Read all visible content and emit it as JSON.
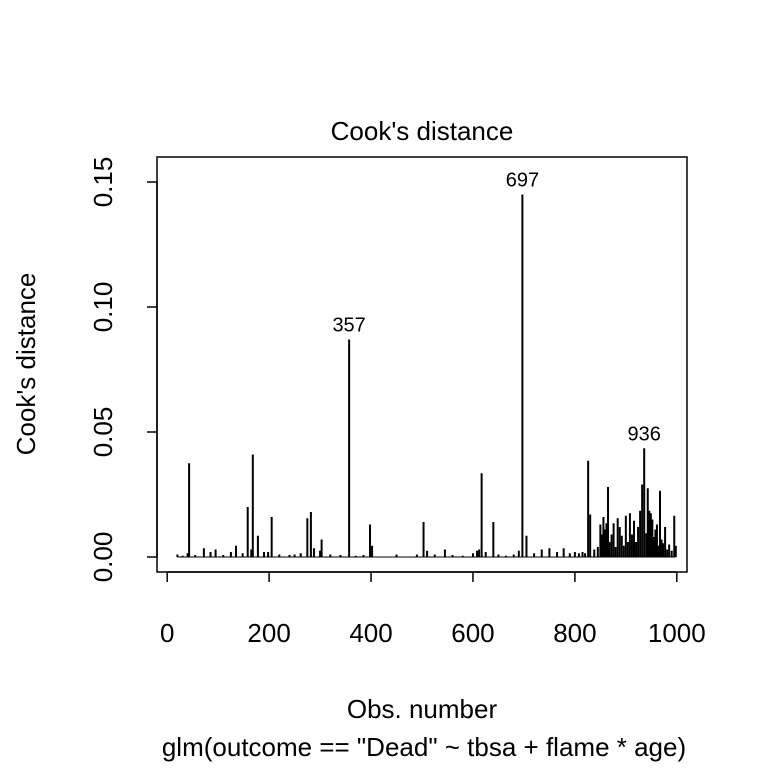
{
  "chart_data": {
    "type": "bar",
    "title": "Cook's distance",
    "xlabel": "Obs. number",
    "subtitle": "glm(outcome == \"Dead\" ~ tbsa + flame * age)",
    "ylabel": "Cook's distance",
    "xlim": [
      -20,
      1020
    ],
    "ylim": [
      -0.006,
      0.16
    ],
    "x_ticks": [
      0,
      200,
      400,
      600,
      800,
      1000
    ],
    "y_ticks": [
      0.0,
      0.05,
      0.1,
      0.15
    ],
    "x_tick_labels": [
      "0",
      "200",
      "400",
      "600",
      "800",
      "1000"
    ],
    "y_tick_labels": [
      "0.00",
      "0.05",
      "0.10",
      "0.15"
    ],
    "grid": false,
    "legend": "none",
    "annotations": [
      {
        "label": "357",
        "x": 357,
        "y": 0.087
      },
      {
        "label": "697",
        "x": 697,
        "y": 0.145
      },
      {
        "label": "936",
        "x": 936,
        "y": 0.0435
      }
    ],
    "points": [
      {
        "x": 20,
        "y": 0.001
      },
      {
        "x": 30,
        "y": 0.0005
      },
      {
        "x": 40,
        "y": 0.0015
      },
      {
        "x": 43,
        "y": 0.0375
      },
      {
        "x": 55,
        "y": 0.0008
      },
      {
        "x": 72,
        "y": 0.0035
      },
      {
        "x": 85,
        "y": 0.002
      },
      {
        "x": 95,
        "y": 0.003
      },
      {
        "x": 110,
        "y": 0.0008
      },
      {
        "x": 125,
        "y": 0.002
      },
      {
        "x": 135,
        "y": 0.0045
      },
      {
        "x": 148,
        "y": 0.0015
      },
      {
        "x": 158,
        "y": 0.02
      },
      {
        "x": 165,
        "y": 0.003
      },
      {
        "x": 168,
        "y": 0.041
      },
      {
        "x": 178,
        "y": 0.0085
      },
      {
        "x": 190,
        "y": 0.002
      },
      {
        "x": 198,
        "y": 0.002
      },
      {
        "x": 205,
        "y": 0.016
      },
      {
        "x": 220,
        "y": 0.001
      },
      {
        "x": 240,
        "y": 0.0008
      },
      {
        "x": 250,
        "y": 0.001
      },
      {
        "x": 262,
        "y": 0.0015
      },
      {
        "x": 275,
        "y": 0.0155
      },
      {
        "x": 282,
        "y": 0.018
      },
      {
        "x": 288,
        "y": 0.0035
      },
      {
        "x": 300,
        "y": 0.0025
      },
      {
        "x": 303,
        "y": 0.007
      },
      {
        "x": 320,
        "y": 0.001
      },
      {
        "x": 340,
        "y": 0.0008
      },
      {
        "x": 357,
        "y": 0.087
      },
      {
        "x": 370,
        "y": 0.0005
      },
      {
        "x": 385,
        "y": 0.0008
      },
      {
        "x": 398,
        "y": 0.013
      },
      {
        "x": 402,
        "y": 0.0045
      },
      {
        "x": 450,
        "y": 0.001
      },
      {
        "x": 490,
        "y": 0.001
      },
      {
        "x": 503,
        "y": 0.014
      },
      {
        "x": 510,
        "y": 0.0025
      },
      {
        "x": 525,
        "y": 0.001
      },
      {
        "x": 545,
        "y": 0.003
      },
      {
        "x": 560,
        "y": 0.0008
      },
      {
        "x": 580,
        "y": 0.0005
      },
      {
        "x": 600,
        "y": 0.0015
      },
      {
        "x": 608,
        "y": 0.0025
      },
      {
        "x": 612,
        "y": 0.003
      },
      {
        "x": 617,
        "y": 0.0335
      },
      {
        "x": 625,
        "y": 0.002
      },
      {
        "x": 640,
        "y": 0.014
      },
      {
        "x": 650,
        "y": 0.001
      },
      {
        "x": 665,
        "y": 0.0005
      },
      {
        "x": 680,
        "y": 0.001
      },
      {
        "x": 690,
        "y": 0.0025
      },
      {
        "x": 697,
        "y": 0.145
      },
      {
        "x": 705,
        "y": 0.0085
      },
      {
        "x": 720,
        "y": 0.0015
      },
      {
        "x": 735,
        "y": 0.003
      },
      {
        "x": 750,
        "y": 0.0035
      },
      {
        "x": 765,
        "y": 0.002
      },
      {
        "x": 778,
        "y": 0.0035
      },
      {
        "x": 790,
        "y": 0.0015
      },
      {
        "x": 800,
        "y": 0.002
      },
      {
        "x": 808,
        "y": 0.0015
      },
      {
        "x": 815,
        "y": 0.002
      },
      {
        "x": 820,
        "y": 0.0015
      },
      {
        "x": 826,
        "y": 0.0385
      },
      {
        "x": 830,
        "y": 0.017
      },
      {
        "x": 838,
        "y": 0.003
      },
      {
        "x": 845,
        "y": 0.004
      },
      {
        "x": 850,
        "y": 0.013
      },
      {
        "x": 853,
        "y": 0.009
      },
      {
        "x": 856,
        "y": 0.016
      },
      {
        "x": 859,
        "y": 0.011
      },
      {
        "x": 862,
        "y": 0.0135
      },
      {
        "x": 865,
        "y": 0.028
      },
      {
        "x": 868,
        "y": 0.006
      },
      {
        "x": 872,
        "y": 0.009
      },
      {
        "x": 876,
        "y": 0.0135
      },
      {
        "x": 880,
        "y": 0.004
      },
      {
        "x": 884,
        "y": 0.0155
      },
      {
        "x": 888,
        "y": 0.012
      },
      {
        "x": 892,
        "y": 0.0085
      },
      {
        "x": 896,
        "y": 0.0045
      },
      {
        "x": 900,
        "y": 0.0165
      },
      {
        "x": 904,
        "y": 0.006
      },
      {
        "x": 908,
        "y": 0.0175
      },
      {
        "x": 912,
        "y": 0.009
      },
      {
        "x": 916,
        "y": 0.0145
      },
      {
        "x": 920,
        "y": 0.006
      },
      {
        "x": 924,
        "y": 0.012
      },
      {
        "x": 928,
        "y": 0.0185
      },
      {
        "x": 932,
        "y": 0.029
      },
      {
        "x": 936,
        "y": 0.0435
      },
      {
        "x": 940,
        "y": 0.0095
      },
      {
        "x": 943,
        "y": 0.0275
      },
      {
        "x": 946,
        "y": 0.0185
      },
      {
        "x": 949,
        "y": 0.0175
      },
      {
        "x": 952,
        "y": 0.015
      },
      {
        "x": 955,
        "y": 0.008
      },
      {
        "x": 958,
        "y": 0.011
      },
      {
        "x": 961,
        "y": 0.013
      },
      {
        "x": 964,
        "y": 0.0045
      },
      {
        "x": 967,
        "y": 0.0265
      },
      {
        "x": 970,
        "y": 0.007
      },
      {
        "x": 973,
        "y": 0.0055
      },
      {
        "x": 977,
        "y": 0.012
      },
      {
        "x": 981,
        "y": 0.003
      },
      {
        "x": 985,
        "y": 0.005
      },
      {
        "x": 990,
        "y": 0.0025
      },
      {
        "x": 995,
        "y": 0.0165
      },
      {
        "x": 998,
        "y": 0.0045
      }
    ]
  }
}
